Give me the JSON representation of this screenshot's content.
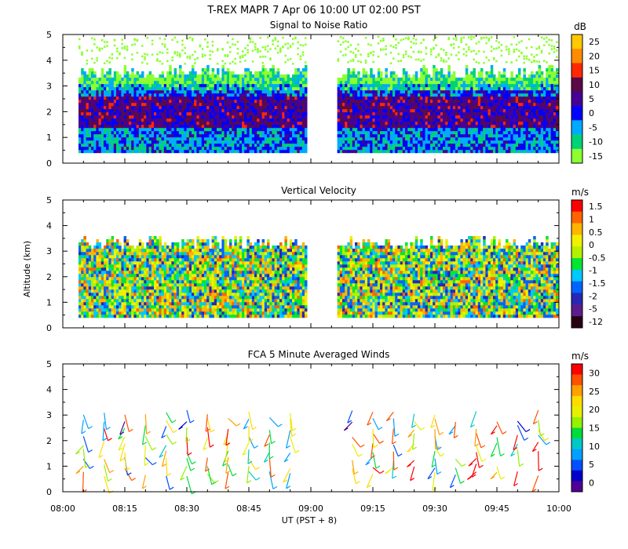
{
  "figure": {
    "title": "T-REX   MAPR   7 Apr 06   10:00 UT   02:00   PST",
    "x_label": "UT  (PST + 8)",
    "y_label": "Altitude (km)",
    "x_ticks": [
      "08:00",
      "08:15",
      "08:30",
      "08:45",
      "09:00",
      "09:15",
      "09:30",
      "09:45",
      "10:00"
    ],
    "y_ticks": [
      "0",
      "1",
      "2",
      "3",
      "4",
      "5"
    ]
  },
  "chart_data": [
    {
      "type": "heatmap",
      "title": "Signal to Noise Ratio",
      "colorbar_title": "dB",
      "colorbar_labels": [
        "25",
        "20",
        "15",
        "10",
        "5",
        "0",
        "-5",
        "-10",
        "-15"
      ],
      "colorbar_colors": [
        "#ffc800",
        "#ff8c00",
        "#ff2800",
        "#5a0a46",
        "#460096",
        "#0000ff",
        "#00aaff",
        "#00d278",
        "#8cff32"
      ],
      "xlim": [
        "08:00",
        "10:00"
      ],
      "ylim": [
        0,
        5
      ],
      "data_gap": [
        "09:00",
        "09:05"
      ],
      "bottom_km": 0.4,
      "profile_top_km": 3.6
    },
    {
      "type": "heatmap",
      "title": "Vertical Velocity",
      "colorbar_title": "m/s",
      "colorbar_labels": [
        "1.5",
        "1",
        "0.5",
        "0",
        "-0.5",
        "-1",
        "-1.5",
        "-2",
        "-5",
        "-12"
      ],
      "colorbar_colors": [
        "#ff0000",
        "#ff6400",
        "#ffb400",
        "#f0f000",
        "#b4f000",
        "#00e632",
        "#00c8ff",
        "#0064ff",
        "#2828b4",
        "#5a1e8c",
        "#280014"
      ],
      "xlim": [
        "08:00",
        "10:00"
      ],
      "ylim": [
        0,
        5
      ],
      "data_gap": [
        "09:00",
        "09:05"
      ],
      "bottom_km": 0.4,
      "profile_top_km": 3.4
    },
    {
      "type": "scatter",
      "title": "FCA 5 Minute Averaged Winds",
      "colorbar_title": "m/s",
      "colorbar_labels": [
        "30",
        "25",
        "20",
        "15",
        "10",
        "5",
        "0"
      ],
      "colorbar_colors": [
        "#ff0000",
        "#ff5000",
        "#ffa000",
        "#ffdc00",
        "#e6f000",
        "#96f000",
        "#00dc3c",
        "#00c8c8",
        "#00a0ff",
        "#0050ff",
        "#0000c8",
        "#500096"
      ],
      "xlim": [
        "08:00",
        "10:00"
      ],
      "ylim": [
        0,
        5
      ],
      "data_gap": [
        "09:00",
        "09:05"
      ],
      "altitudes_km": [
        0.7,
        1.0,
        1.3,
        1.6,
        1.9,
        2.2,
        2.5,
        2.8,
        3.1
      ],
      "note": "wind barbs every 5 min, colored by speed"
    }
  ]
}
